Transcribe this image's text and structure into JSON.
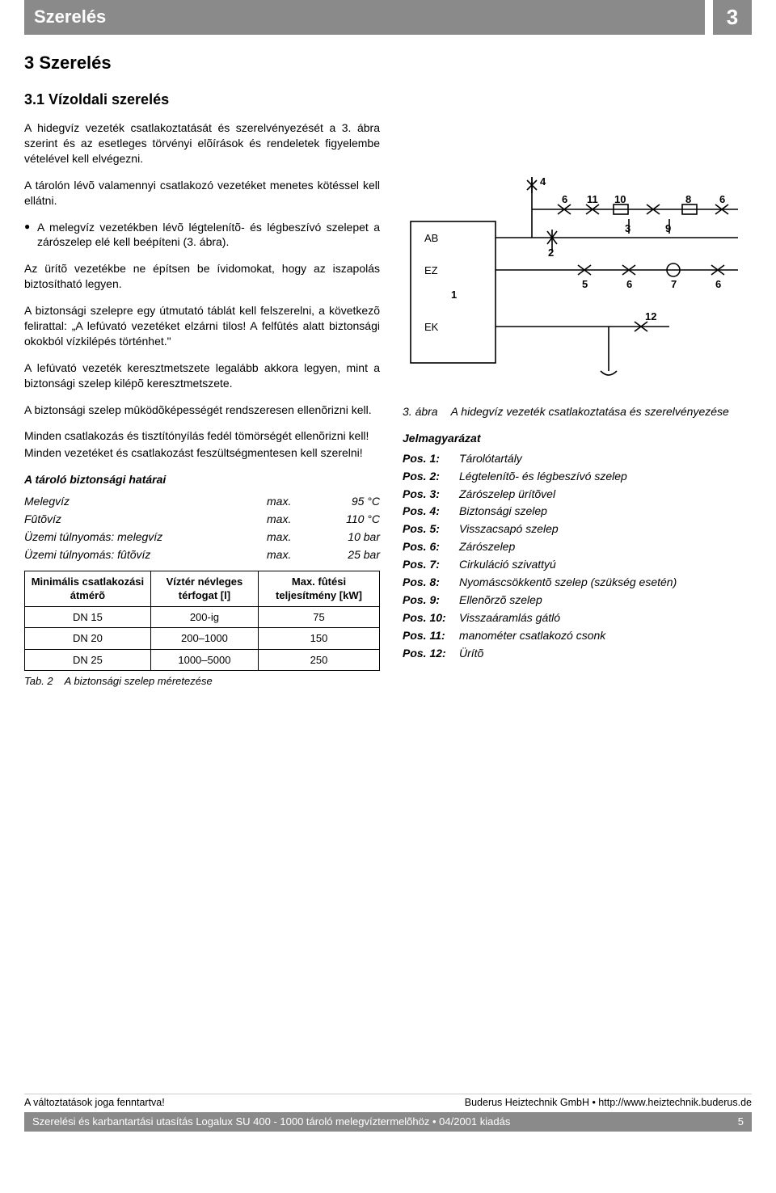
{
  "header": {
    "title": "Szerelés",
    "chapter_num": "3"
  },
  "sections": {
    "h1": "3   Szerelés",
    "h2": "3.1   Vízoldali szerelés",
    "p1": "A hidegvíz vezeték csatlakoztatását és szerelvényezését a 3. ábra szerint és az esetleges törvényi elõírások és rendeletek figyelembe vételével kell elvégezni.",
    "p2": "A tárolón lévõ valamennyi csatlakozó vezetéket menetes kötéssel kell ellátni.",
    "p3": "A melegvíz vezetékben lévõ légtelenítõ- és légbeszívó szelepet a zárószelep elé kell beépíteni (3. ábra).",
    "p4": "Az ürítõ vezetékbe ne építsen be ívidomokat, hogy az iszapolás biztosítható legyen.",
    "p5": "A biztonsági szelepre egy útmutató táblát kell felszerelni, a következõ felirattal: „A lefúvató vezetéket elzárni tilos! A felfûtés alatt biztonsági okokból vízkilépés történhet.\"",
    "p6": "A lefúvató vezeték keresztmetszete legalább akkora legyen, mint a biztonsági szelep kilépõ keresztmetszete.",
    "p7": "A biztonsági szelep mûködõképességét rendszeresen ellenõrizni kell.",
    "p8": "Minden csatlakozás és tisztítónyílás fedél tömörségét ellenõrizni kell!",
    "p9": "Minden vezetéket és csatlakozást feszültségmentesen kell szerelni!"
  },
  "limits": {
    "heading": "A tároló biztonsági határai",
    "rows": [
      {
        "label": "Melegvíz",
        "max": "max.",
        "value": "95 °C"
      },
      {
        "label": "Fûtõvíz",
        "max": "max.",
        "value": "110 °C"
      },
      {
        "label": "Üzemi túlnyomás: melegvíz",
        "max": "max.",
        "value": "10 bar"
      },
      {
        "label": "Üzemi túlnyomás: fûtõvíz",
        "max": "max.",
        "value": "25 bar"
      }
    ]
  },
  "table": {
    "headers": [
      "Minimális csatlakozási átmérõ",
      "Víztér névleges térfogat [l]",
      "Max. fûtési teljesítmény [kW]"
    ],
    "rows": [
      [
        "DN 15",
        "200-ig",
        "75"
      ],
      [
        "DN 20",
        "200–1000",
        "150"
      ],
      [
        "DN 25",
        "1000–5000",
        "250"
      ]
    ],
    "caption_num": "Tab. 2",
    "caption_text": "A biztonsági szelep méretezése"
  },
  "figure": {
    "num": "3. ábra",
    "text": "A hidegvíz vezeték csatlakoztatása és szerelvényezése",
    "tank_labels": {
      "AB": "AB",
      "EZ": "EZ",
      "EK": "EK",
      "id": "1"
    },
    "callouts": [
      "2",
      "3",
      "4",
      "5",
      "6",
      "6",
      "6",
      "7",
      "8",
      "9",
      "10",
      "11",
      "12"
    ]
  },
  "legend": {
    "heading": "Jelmagyarázat",
    "items": [
      {
        "pos": "Pos. 1:",
        "text": "Tárolótartály"
      },
      {
        "pos": "Pos. 2:",
        "text": "Légtelenítõ- és légbeszívó szelep"
      },
      {
        "pos": "Pos. 3:",
        "text": "Zárószelep ürítõvel"
      },
      {
        "pos": "Pos. 4:",
        "text": "Biztonsági szelep"
      },
      {
        "pos": "Pos. 5:",
        "text": "Visszacsapó szelep"
      },
      {
        "pos": "Pos. 6:",
        "text": "Zárószelep"
      },
      {
        "pos": "Pos. 7:",
        "text": "Cirkuláció szivattyú"
      },
      {
        "pos": "Pos. 8:",
        "text": "Nyomáscsökkentõ szelep (szükség esetén)"
      },
      {
        "pos": "Pos. 9:",
        "text": "Ellenõrzõ szelep"
      },
      {
        "pos": "Pos. 10:",
        "text": "Visszaáramlás gátló"
      },
      {
        "pos": "Pos. 11:",
        "text": "manométer csatlakozó csonk"
      },
      {
        "pos": "Pos. 12:",
        "text": "Ürítõ"
      }
    ]
  },
  "footer": {
    "left": "A változtatások joga fenntartva!",
    "right": "Buderus Heiztechnik GmbH • http://www.heiztechnik.buderus.de",
    "bar_left": "Szerelési és karbantartási utasítás Logalux SU 400 - 1000 tároló melegvíztermelõhöz • 04/2001 kiadás",
    "bar_right": "5"
  }
}
